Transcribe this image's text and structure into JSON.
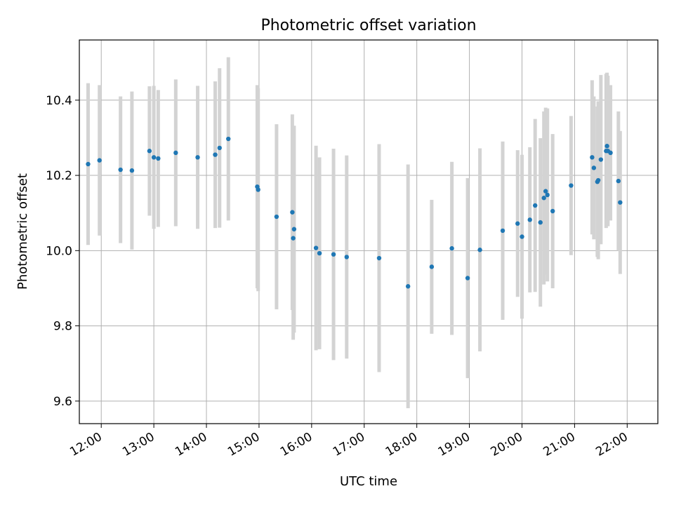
{
  "chart_data": {
    "type": "scatter",
    "title": "Photometric offset variation",
    "xlabel": "UTC time",
    "ylabel": "Photometric offset",
    "grid": true,
    "x_unit": "hour",
    "xlim": [
      "11:35",
      "22:35"
    ],
    "ylim": [
      9.54,
      10.56
    ],
    "xtick_labels": [
      "12:00",
      "13:00",
      "14:00",
      "15:00",
      "16:00",
      "17:00",
      "18:00",
      "19:00",
      "20:00",
      "21:00",
      "22:00"
    ],
    "ytick_labels": [
      "9.6",
      "9.8",
      "10.0",
      "10.2",
      "10.4"
    ],
    "colors": {
      "points": "#1f77b4",
      "errorbars": "#d3d3d3",
      "grid": "#b0b0b0"
    },
    "series": [
      {
        "x": [
          "11:45",
          "11:58",
          "12:22",
          "12:35",
          "12:55",
          "13:00",
          "13:05",
          "13:25",
          "13:50",
          "14:10",
          "14:15",
          "14:25",
          "14:58",
          "14:59",
          "15:20",
          "15:38",
          "15:39",
          "15:40",
          "16:05",
          "16:09",
          "16:25",
          "16:40",
          "17:17",
          "17:50",
          "18:17",
          "18:40",
          "18:58",
          "19:12",
          "19:38",
          "19:55",
          "20:00",
          "20:09",
          "20:15",
          "20:21",
          "20:25",
          "20:27",
          "20:29",
          "20:35",
          "20:56",
          "21:20",
          "21:22",
          "21:26",
          "21:27",
          "21:30",
          "21:36",
          "21:37",
          "21:38",
          "21:41",
          "21:50",
          "21:52"
        ],
        "y": [
          10.23,
          10.24,
          10.215,
          10.213,
          10.265,
          10.248,
          10.245,
          10.26,
          10.248,
          10.255,
          10.273,
          10.297,
          10.17,
          10.162,
          10.09,
          10.102,
          10.033,
          10.057,
          10.007,
          9.993,
          9.99,
          9.983,
          9.98,
          9.905,
          9.957,
          10.006,
          9.927,
          10.002,
          10.053,
          10.072,
          10.037,
          10.082,
          10.12,
          10.075,
          10.14,
          10.158,
          10.148,
          10.105,
          10.173,
          10.248,
          10.22,
          10.183,
          10.187,
          10.242,
          10.265,
          10.278,
          10.265,
          10.26,
          10.185,
          10.128
        ],
        "y_err": [
          0.215,
          0.2,
          0.195,
          0.21,
          0.172,
          0.19,
          0.182,
          0.195,
          0.19,
          0.195,
          0.212,
          0.217,
          0.27,
          0.27,
          0.246,
          0.26,
          0.27,
          0.275,
          0.272,
          0.255,
          0.281,
          0.27,
          0.303,
          0.324,
          0.178,
          0.23,
          0.266,
          0.27,
          0.237,
          0.195,
          0.218,
          0.193,
          0.23,
          0.224,
          0.23,
          0.222,
          0.23,
          0.205,
          0.185,
          0.205,
          0.19,
          0.2,
          0.21,
          0.225,
          0.205,
          0.195,
          0.2,
          0.18,
          0.185,
          0.19
        ]
      }
    ]
  }
}
